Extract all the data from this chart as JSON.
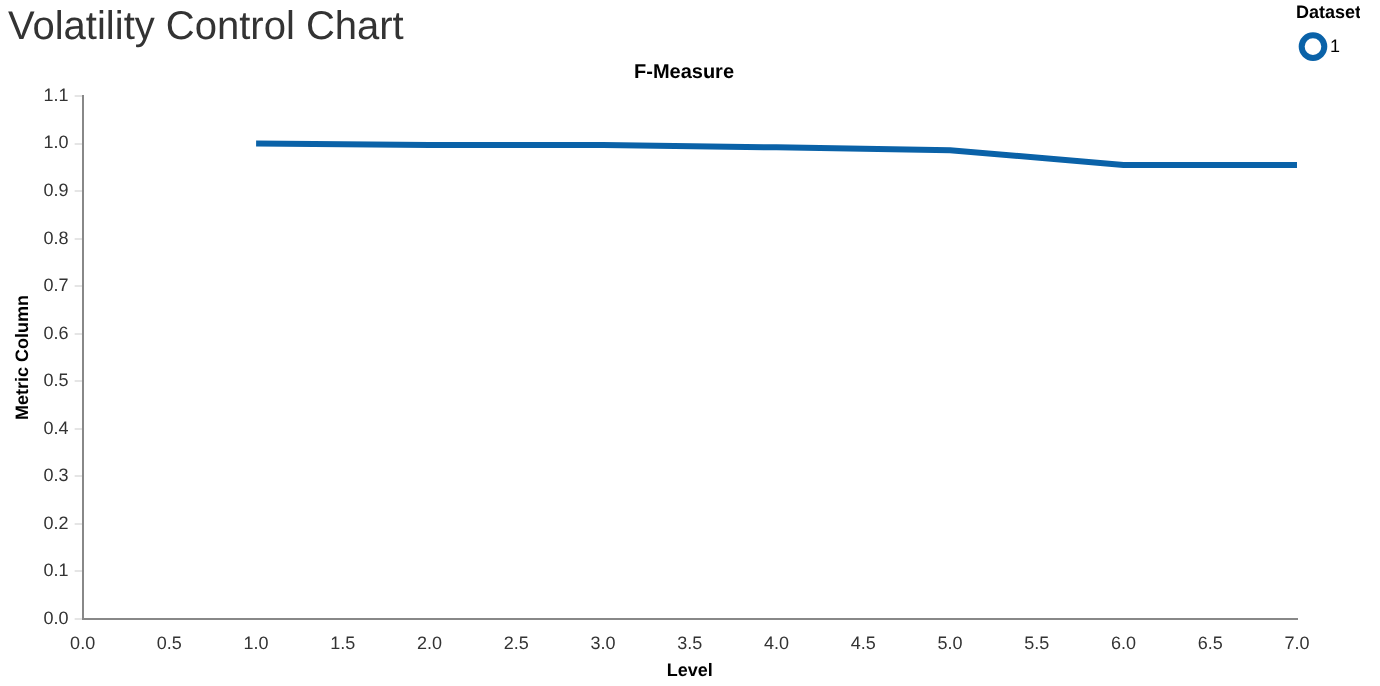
{
  "chart_data": {
    "type": "line",
    "title": "Volatility Control Chart",
    "subtitle": "F-Measure",
    "xlabel": "Level",
    "ylabel": "Metric Column",
    "legend_title": "Dataset",
    "x": [
      1,
      2,
      3,
      4,
      5,
      6,
      7
    ],
    "series": [
      {
        "name": "1",
        "color": "#0a62a8",
        "values": [
          1.0,
          0.997,
          0.997,
          0.992,
          0.986,
          0.955,
          0.955
        ]
      }
    ],
    "xlim": [
      0,
      7
    ],
    "xticks": [
      {
        "value": 0,
        "label": "0.0"
      },
      {
        "value": 0.5,
        "label": "0.5"
      },
      {
        "value": 1,
        "label": "1.0"
      },
      {
        "value": 1.5,
        "label": "1.5"
      },
      {
        "value": 2,
        "label": "2.0"
      },
      {
        "value": 2.5,
        "label": "2.5"
      },
      {
        "value": 3,
        "label": "3.0"
      },
      {
        "value": 3.5,
        "label": "3.5"
      },
      {
        "value": 4,
        "label": "4.0"
      },
      {
        "value": 4.5,
        "label": "4.5"
      },
      {
        "value": 5,
        "label": "5.0"
      },
      {
        "value": 5.5,
        "label": "5.5"
      },
      {
        "value": 6,
        "label": "6.0"
      },
      {
        "value": 6.5,
        "label": "6.5"
      },
      {
        "value": 7,
        "label": "7.0"
      }
    ],
    "ylim": [
      0,
      1.1
    ],
    "yticks": [
      {
        "value": 0,
        "label": "0.0"
      },
      0.1,
      0.2,
      0.3,
      0.4,
      0.5,
      0.6,
      0.7,
      0.8,
      0.9,
      {
        "value": 1,
        "label": "1.0"
      },
      1.1
    ],
    "grid": false,
    "legend": "top right",
    "marker": "none",
    "line_style": "solid"
  }
}
